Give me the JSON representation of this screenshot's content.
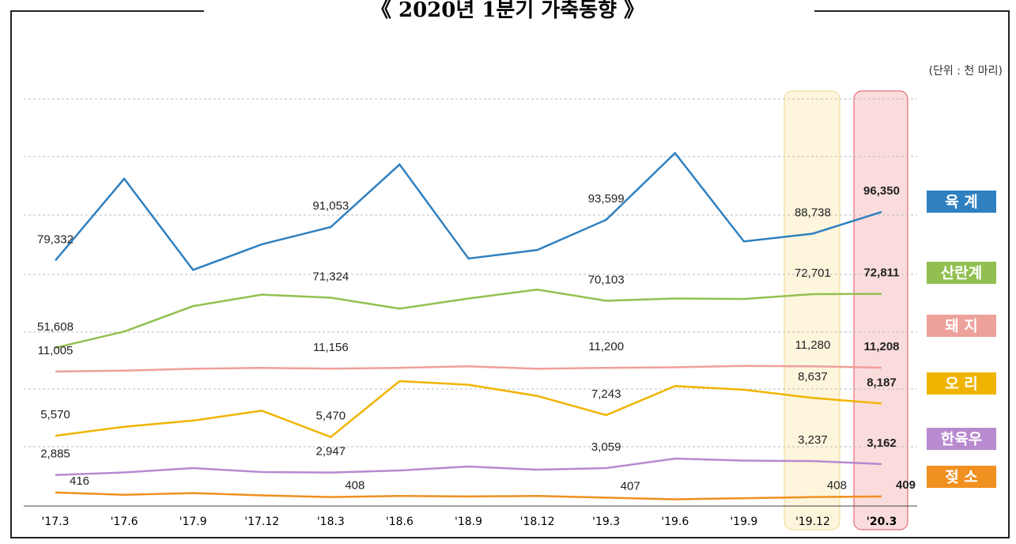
{
  "chart_data": {
    "type": "line",
    "title": "《 2020년 1분기 가축동향 》",
    "unit_note": "(단위 : 천 마리)",
    "categories": [
      "'17.3",
      "'17.6",
      "'17.9",
      "'17.12",
      "'18.3",
      "'18.6",
      "'18.9",
      "'18.12",
      "'19.3",
      "'19.6",
      "'19.9",
      "'19.12",
      "'20.3"
    ],
    "series": [
      {
        "name": "육 계",
        "color": "#2f80c0",
        "ylim": [
          75000,
          118000
        ],
        "values": [
          79332,
          108000,
          76000,
          85000,
          91053,
          113000,
          80000,
          83000,
          93599,
          117000,
          86000,
          88738,
          96350
        ],
        "value_labels": [
          "79,332",
          null,
          null,
          null,
          "91,053",
          null,
          null,
          null,
          "93,599",
          null,
          null,
          "88,738",
          "96,350"
        ]
      },
      {
        "name": "산란계",
        "color": "#92c050",
        "ylim": [
          50000,
          78000
        ],
        "values": [
          51608,
          58000,
          68000,
          72500,
          71324,
          67000,
          71000,
          74500,
          70103,
          71000,
          70800,
          72701,
          72811
        ],
        "value_labels": [
          "51,608",
          null,
          null,
          null,
          "71,324",
          null,
          null,
          null,
          "70,103",
          null,
          null,
          "72,701",
          "72,811"
        ]
      },
      {
        "name": "돼 지",
        "color": "#eea09a",
        "ylim": [
          10500,
          11500
        ],
        "values": [
          11005,
          11050,
          11150,
          11200,
          11156,
          11200,
          11280,
          11150,
          11200,
          11230,
          11300,
          11280,
          11208
        ],
        "value_labels": [
          "11,005",
          null,
          null,
          null,
          "11,156",
          null,
          null,
          null,
          "11,200",
          null,
          null,
          "11,280",
          "11,208"
        ]
      },
      {
        "name": "오 리",
        "color": "#f0b400",
        "ylim": [
          5000,
          10000
        ],
        "values": [
          5570,
          6300,
          6800,
          7600,
          5470,
          10000,
          9700,
          8800,
          7243,
          9600,
          9300,
          8637,
          8187
        ],
        "value_labels": [
          "5,570",
          null,
          null,
          null,
          "5,470",
          null,
          null,
          null,
          "7,243",
          null,
          null,
          "8,637",
          "8,187"
        ]
      },
      {
        "name": "한육우",
        "color": "#b88ad0",
        "ylim": [
          2700,
          3400
        ],
        "values": [
          2885,
          2950,
          3060,
          2960,
          2947,
          3000,
          3100,
          3020,
          3059,
          3300,
          3250,
          3237,
          3162
        ],
        "value_labels": [
          "2,885",
          null,
          null,
          null,
          "2,947",
          null,
          null,
          null,
          "3,059",
          null,
          null,
          "3,237",
          "3,162"
        ]
      },
      {
        "name": "젖 소",
        "color": "#f09020",
        "ylim": [
          395,
          420
        ],
        "values": [
          416,
          412,
          415,
          411,
          408,
          410,
          409,
          410,
          407,
          404,
          406,
          408,
          409
        ]
      }
    ]
  }
}
